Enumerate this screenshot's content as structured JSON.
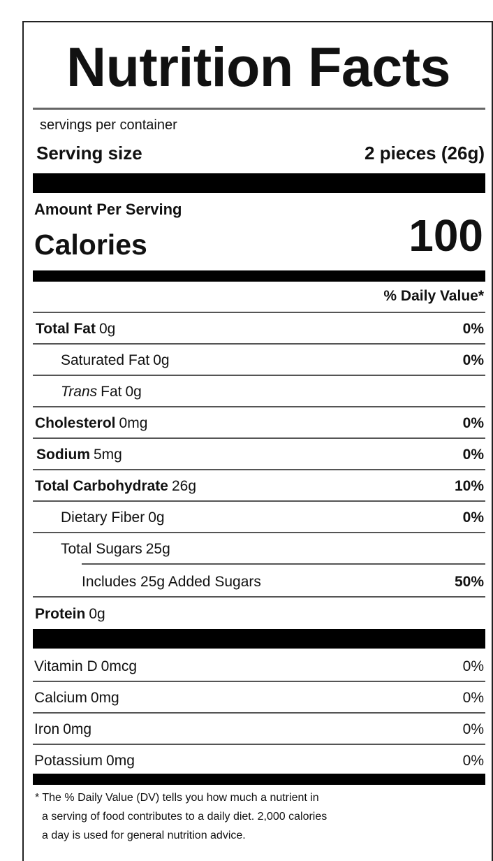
{
  "title": "Nutrition Facts",
  "servings_per_container": "servings per container",
  "serving_size": {
    "label": "Serving size",
    "value": "2 pieces (26g)"
  },
  "amount_per_serving": "Amount Per Serving",
  "calories": {
    "label": "Calories",
    "value": 100
  },
  "daily_value_header": "% Daily Value*",
  "nutrients": [
    {
      "name": "Total Fat",
      "amount": "0g",
      "dv": "0%"
    },
    {
      "name": "Saturated Fat",
      "amount": "0g",
      "dv": "0%"
    },
    {
      "name_italic": "Trans",
      "name": "Fat",
      "amount": "0g"
    },
    {
      "name": "Cholesterol",
      "amount": "0mg",
      "dv": "0%"
    },
    {
      "name": "Sodium",
      "amount": "5mg",
      "dv": "0%"
    },
    {
      "name": "Total Carbohydrate",
      "amount": "26g",
      "dv": "10%"
    },
    {
      "name": "Dietary Fiber",
      "amount": "0g",
      "dv": "0%"
    },
    {
      "name": "Total Sugars",
      "amount": "25g"
    },
    {
      "name": "Includes 25g Added Sugars",
      "dv": "50%"
    },
    {
      "name": "Protein",
      "amount": "0g"
    }
  ],
  "vitamins": [
    {
      "name": "Vitamin D",
      "amount": "0mcg",
      "dv": "0%"
    },
    {
      "name": "Calcium",
      "amount": "0mg",
      "dv": "0%"
    },
    {
      "name": "Iron",
      "amount": "0mg",
      "dv": "0%"
    },
    {
      "name": "Potassium",
      "amount": "0mg",
      "dv": "0%"
    }
  ],
  "footnote": [
    "* The % Daily Value (DV) tells you how much a nutrient in",
    "a serving of food contributes to a daily diet. 2,000 calories",
    "a day is used for general nutrition advice."
  ]
}
